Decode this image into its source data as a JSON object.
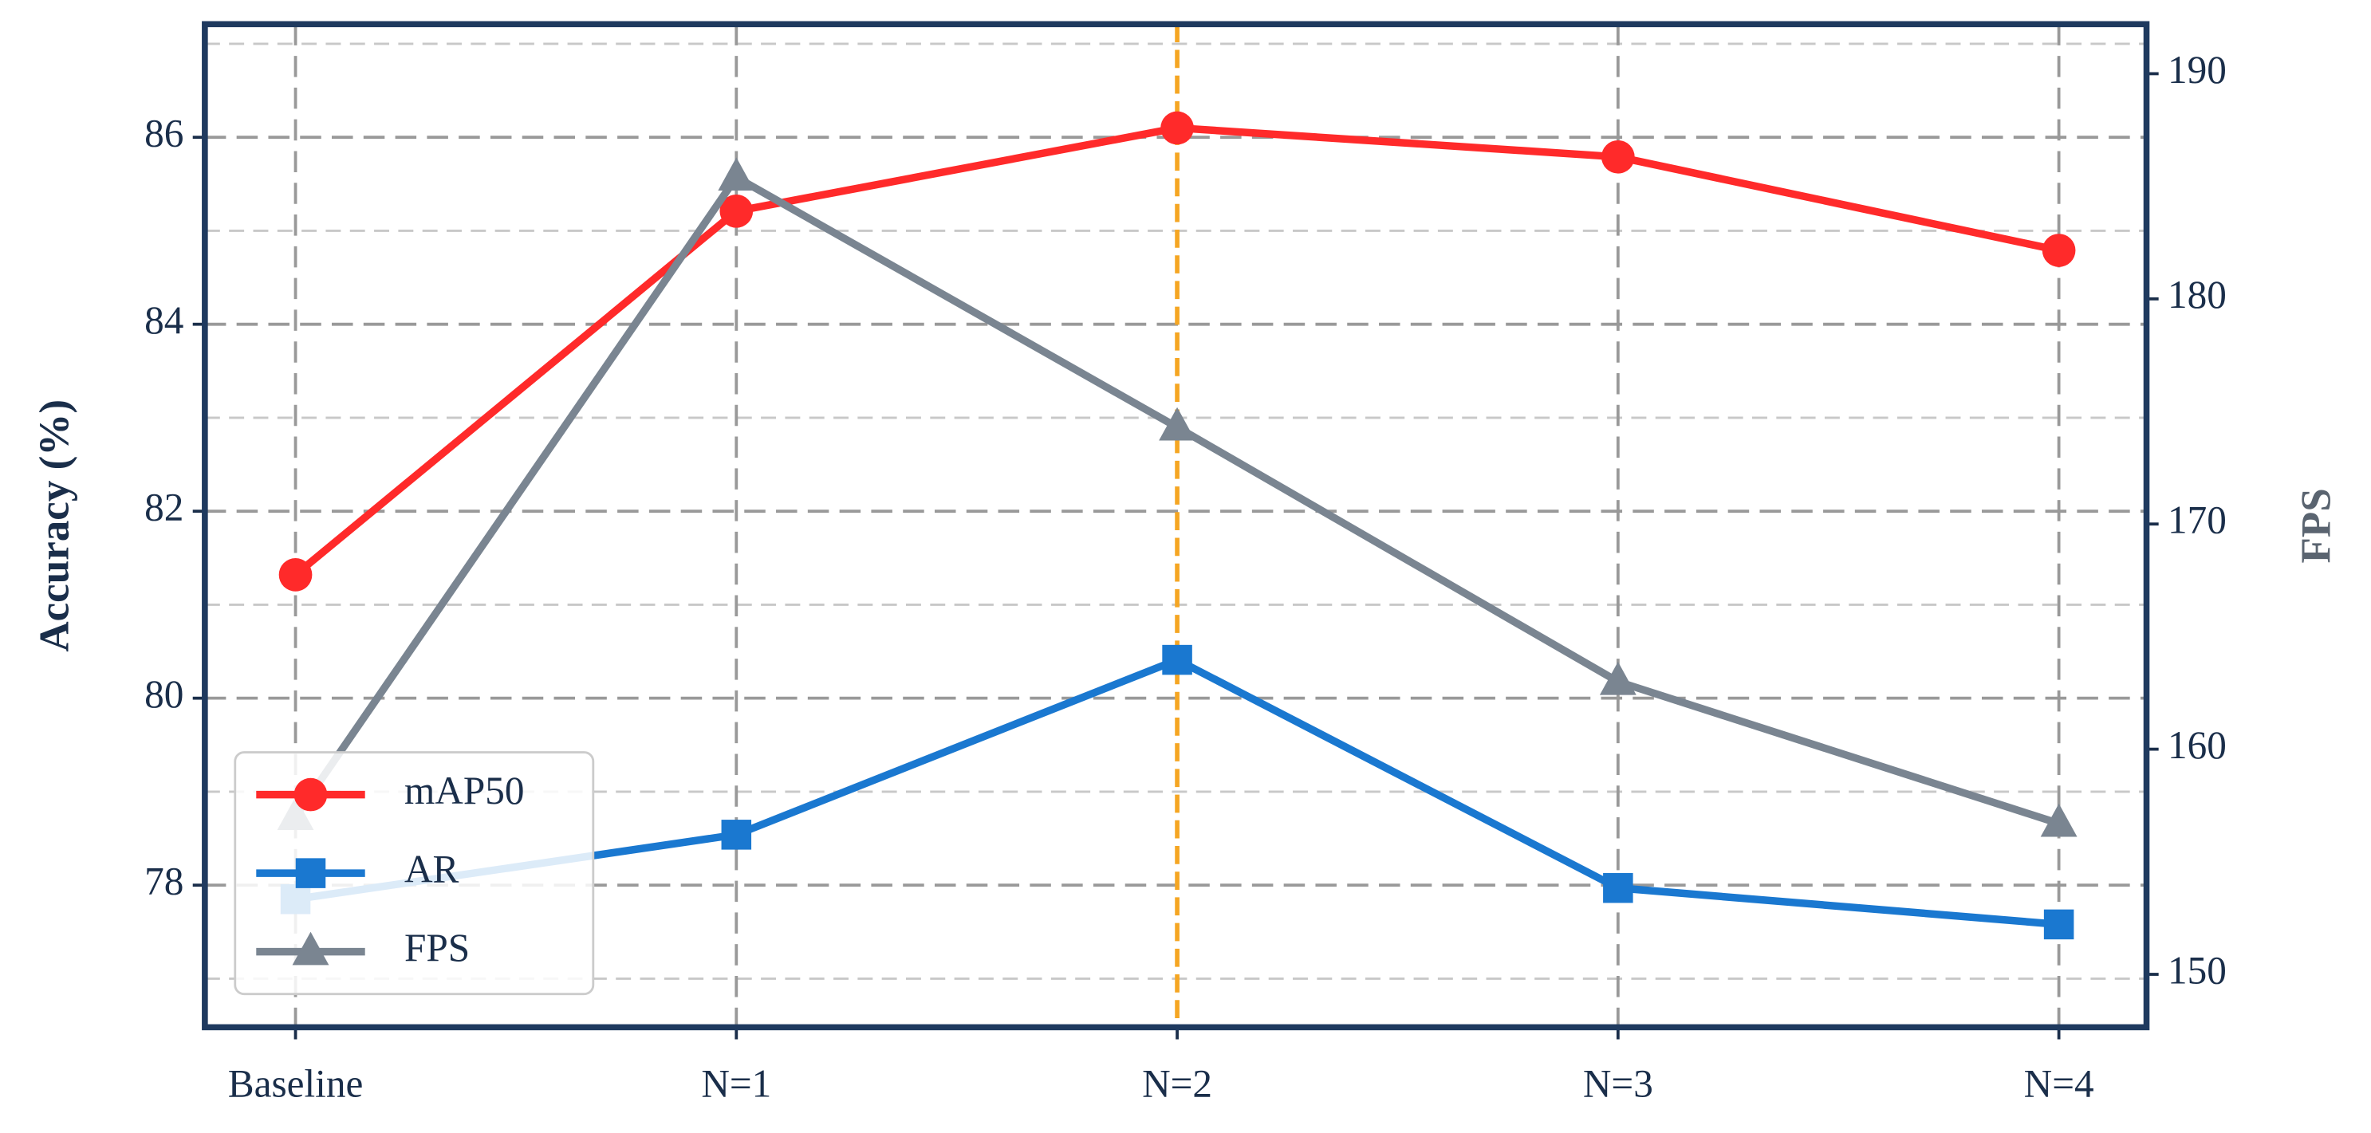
{
  "chart_data": {
    "type": "line",
    "categories": [
      "Baseline",
      "N=1",
      "N=2",
      "N=3",
      "N=4"
    ],
    "y_label": "Accuracy (%)",
    "y2_label": "FPS",
    "ylim": [
      76.48,
      87.21
    ],
    "yticks": [
      78,
      80,
      82,
      84,
      86
    ],
    "yminorticks": [
      77,
      79,
      81,
      83,
      85,
      87
    ],
    "y2lim": [
      147.65,
      192.2
    ],
    "y2ticks": [
      150,
      160,
      170,
      180,
      190
    ],
    "grid": true,
    "highlight_index": 2,
    "highlight_color": "#f5a623",
    "legend": "lower left",
    "series": [
      {
        "name": "mAP50",
        "color": "#ff2a2a",
        "marker": "circle",
        "values": [
          81.32,
          85.21,
          86.1,
          85.79,
          84.79
        ]
      },
      {
        "name": "AR",
        "color": "#1a78d0",
        "marker": "square",
        "values": [
          77.85,
          78.54,
          80.41,
          77.97,
          77.58
        ]
      },
      {
        "name": "FPS",
        "color": "#7a8591",
        "marker": "triangle",
        "axis": "y2",
        "values": [
          157.0,
          185.4,
          174.3,
          163.0,
          156.7
        ]
      }
    ]
  }
}
